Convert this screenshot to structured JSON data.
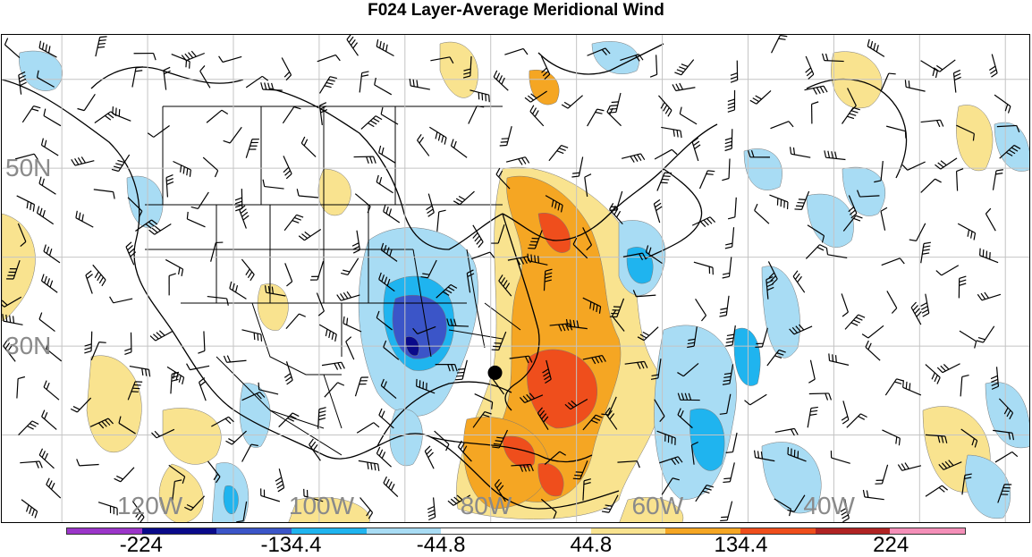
{
  "title": "F024 Layer-Average Meridional Wind",
  "map": {
    "lat_labels": [
      {
        "text": "50N",
        "lat": 50
      },
      {
        "text": "30N",
        "lat": 30
      }
    ],
    "lon_labels": [
      {
        "text": "120W",
        "lon": -120
      },
      {
        "text": "100W",
        "lon": -100
      },
      {
        "text": "80W",
        "lon": -80
      },
      {
        "text": "60W",
        "lon": -60
      },
      {
        "text": "40W",
        "lon": -40
      }
    ],
    "extent": {
      "lon_min": -137,
      "lon_max": -17,
      "lat_min": 10,
      "lat_max": 65
    },
    "grid_spacing_deg": 10,
    "marker": "storm-center-dot"
  },
  "colorbar": {
    "colors": [
      "#9b35c9",
      "#0a0a8a",
      "#3b55c8",
      "#1fb4ef",
      "#a8dcf4",
      "#ffffff",
      "#ffffff",
      "#f9e38f",
      "#f5a623",
      "#ef4e1c",
      "#b02323",
      "#f48fb8"
    ],
    "labels": [
      "-224",
      "-134.4",
      "-44.8",
      "44.8",
      "134.4",
      "224"
    ]
  },
  "fill_colors": {
    "light_blue": "#a8dcf4",
    "mid_blue": "#1fb4ef",
    "dark_blue": "#3b55c8",
    "navy": "#0a0a8a",
    "light_yellow": "#f9e38f",
    "orange": "#f5a623",
    "red_orange": "#ef4e1c"
  }
}
